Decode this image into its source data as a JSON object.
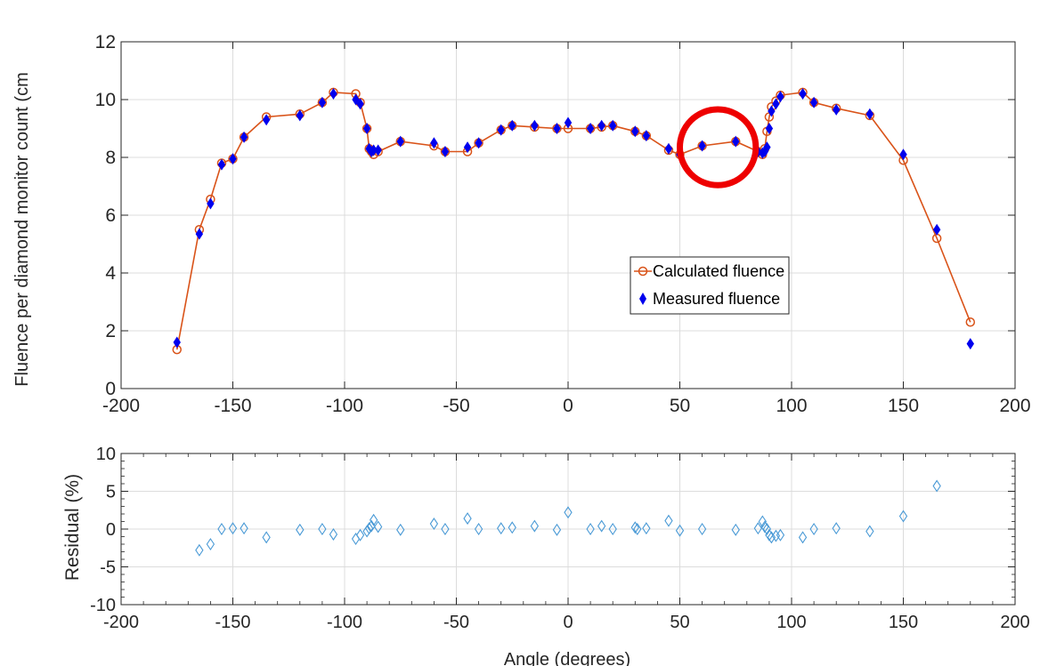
{
  "chart_data": [
    {
      "type": "line",
      "title": "",
      "xlabel": "",
      "ylabel": "Fluence per diamond monitor count (cm",
      "xlim": [
        -200,
        200
      ],
      "ylim": [
        0,
        12
      ],
      "xticks": [
        -200,
        -150,
        -100,
        -50,
        0,
        50,
        100,
        150,
        200
      ],
      "yticks": [
        0,
        2,
        4,
        6,
        8,
        10,
        12
      ],
      "grid": true,
      "legend_position": "center-right",
      "series": [
        {
          "name": "Calculated fluence",
          "marker": "open-circle",
          "line": true,
          "color": "#d95319",
          "x": [
            -175,
            -165,
            -160,
            -155,
            -150,
            -145,
            -135,
            -120,
            -110,
            -105,
            -95,
            -93,
            -90,
            -89,
            -88,
            -87,
            -85,
            -75,
            -60,
            -55,
            -45,
            -40,
            -30,
            -25,
            -15,
            -5,
            0,
            10,
            15,
            20,
            30,
            35,
            45,
            50,
            60,
            75,
            85,
            87,
            88,
            89,
            90,
            91,
            93,
            95,
            105,
            110,
            120,
            135,
            150,
            165,
            180
          ],
          "y": [
            1.35,
            5.5,
            6.55,
            7.8,
            7.95,
            8.7,
            9.4,
            9.5,
            9.9,
            10.25,
            10.2,
            9.9,
            9.0,
            8.3,
            8.2,
            8.1,
            8.2,
            8.55,
            8.4,
            8.2,
            8.2,
            8.5,
            8.95,
            9.1,
            9.05,
            9.0,
            9.0,
            9.0,
            9.05,
            9.1,
            8.9,
            8.75,
            8.25,
            8.1,
            8.4,
            8.55,
            8.2,
            8.1,
            8.3,
            8.9,
            9.4,
            9.75,
            9.95,
            10.15,
            10.25,
            9.9,
            9.7,
            9.45,
            7.9,
            5.2,
            2.3
          ]
        },
        {
          "name": "Measured fluence",
          "marker": "filled-diamond",
          "line": false,
          "color": "#0000ee",
          "x": [
            -175,
            -165,
            -160,
            -155,
            -150,
            -145,
            -135,
            -120,
            -110,
            -105,
            -95,
            -93,
            -90,
            -89,
            -88,
            -87,
            -85,
            -75,
            -60,
            -55,
            -45,
            -40,
            -30,
            -25,
            -15,
            -5,
            0,
            10,
            15,
            20,
            30,
            35,
            45,
            50,
            60,
            75,
            85,
            87,
            88,
            89,
            90,
            91,
            93,
            95,
            105,
            110,
            120,
            135,
            150,
            165,
            180
          ],
          "y": [
            1.6,
            5.35,
            6.4,
            7.75,
            7.95,
            8.7,
            9.3,
            9.45,
            9.9,
            10.2,
            10.0,
            9.85,
            9.0,
            8.3,
            8.2,
            8.25,
            8.25,
            8.55,
            8.5,
            8.2,
            8.35,
            8.5,
            8.95,
            9.1,
            9.1,
            9.0,
            9.2,
            9.0,
            9.1,
            9.1,
            8.9,
            8.75,
            8.3,
            8.1,
            8.4,
            8.55,
            8.2,
            8.15,
            8.2,
            8.35,
            9.0,
            9.6,
            9.85,
            10.1,
            10.2,
            9.9,
            9.65,
            9.5,
            8.1,
            5.5,
            1.55
          ]
        }
      ],
      "annotations": [
        {
          "shape": "circle",
          "color": "#ee0000",
          "center": [
            67,
            8.35
          ],
          "radius_x_units": 17
        }
      ]
    },
    {
      "type": "scatter",
      "title": "",
      "xlabel": "Angle (degrees)",
      "ylabel": "Residual (%)",
      "xlim": [
        -200,
        200
      ],
      "ylim": [
        -10,
        10
      ],
      "xticks": [
        -200,
        -150,
        -100,
        -50,
        0,
        50,
        100,
        150,
        200
      ],
      "yticks": [
        -10,
        -5,
        0,
        5,
        10
      ],
      "grid": true,
      "series": [
        {
          "marker": "open-diamond",
          "color": "#4a9ad6",
          "x": [
            -165,
            -160,
            -155,
            -150,
            -145,
            -135,
            -120,
            -110,
            -105,
            -95,
            -93,
            -90,
            -89,
            -88,
            -87,
            -85,
            -75,
            -60,
            -55,
            -45,
            -40,
            -30,
            -25,
            -15,
            -5,
            0,
            10,
            15,
            20,
            30,
            31,
            35,
            45,
            50,
            60,
            75,
            85,
            87,
            88,
            89,
            90,
            91,
            93,
            95,
            105,
            110,
            120,
            135,
            150,
            165
          ],
          "y": [
            -2.8,
            -2.0,
            0.0,
            0.1,
            0.1,
            -1.1,
            -0.1,
            0.0,
            -0.7,
            -1.3,
            -0.8,
            -0.3,
            0.1,
            0.4,
            1.2,
            0.3,
            -0.1,
            0.7,
            0.0,
            1.4,
            0.0,
            0.1,
            0.2,
            0.4,
            -0.1,
            2.2,
            0.0,
            0.4,
            0.0,
            0.2,
            0.0,
            0.1,
            1.1,
            -0.2,
            0.0,
            -0.1,
            0.1,
            1.0,
            0.3,
            0.0,
            -0.8,
            -1.1,
            -0.9,
            -0.8,
            -1.1,
            0.0,
            0.1,
            -0.3,
            1.7,
            5.7
          ]
        }
      ]
    }
  ]
}
